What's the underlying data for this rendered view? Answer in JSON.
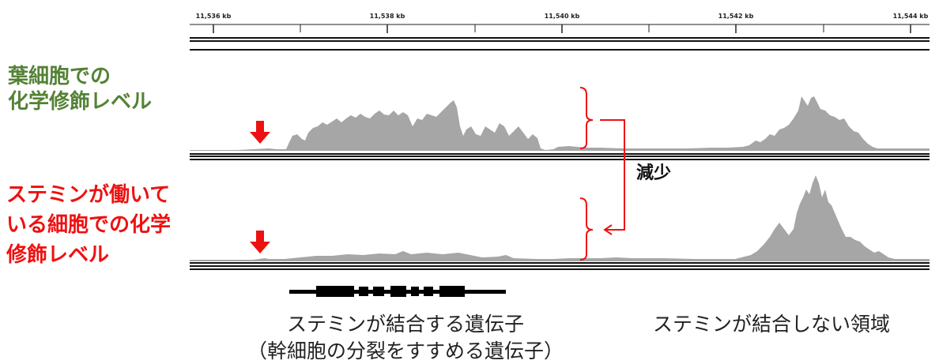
{
  "genome_axis": {
    "ticks": [
      "11,536 kb",
      "11,538 kb",
      "11,540 kb",
      "11,542 kb",
      "11,544 kb"
    ]
  },
  "tracks": [
    {
      "name": "葉細胞での化学修飾レベル",
      "lines": [
        "葉細胞での",
        "化学修飾レベル"
      ],
      "color": "#548235"
    },
    {
      "name": "ステミンが働いている細胞での化学修飾レベル",
      "lines": [
        "ステミンが働いて",
        "いる細胞での化学",
        "修飾レベル"
      ],
      "color": "#ee1111"
    }
  ],
  "annotation": {
    "label": "減少"
  },
  "regions": {
    "gene": {
      "lines": [
        "ステミンが結合する遺伝子",
        "（幹細胞の分裂をすすめる遺伝子）"
      ]
    },
    "non_binding": {
      "label": "ステミンが結合しない領域"
    }
  },
  "colors": {
    "signal": "#a6a6a6",
    "arrow": "#ee1111",
    "axis": "#222222"
  },
  "icons": [
    "down-arrow-icon",
    "bracket-icon",
    "connector-arrow-icon",
    "gene-model-icon"
  ]
}
